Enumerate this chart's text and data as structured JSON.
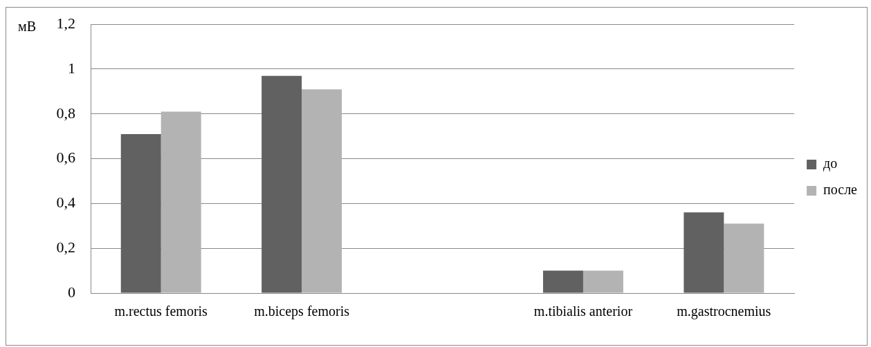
{
  "chart_data": {
    "type": "bar",
    "ylabel": "мВ",
    "categories": [
      "m.rectus femoris",
      "m.biceps femoris",
      null,
      "m.tibialis anterior",
      "m.gastrocnemius"
    ],
    "series": [
      {
        "name": "до",
        "color": "#616161",
        "values": [
          0.71,
          0.97,
          null,
          0.1,
          0.36
        ]
      },
      {
        "name": "после",
        "color": "#b3b3b3",
        "values": [
          0.81,
          0.91,
          null,
          0.1,
          0.31
        ]
      }
    ],
    "ylim": [
      0,
      1.2
    ],
    "yticks": [
      {
        "value": 0,
        "label": "0"
      },
      {
        "value": 0.2,
        "label": "0,2"
      },
      {
        "value": 0.4,
        "label": "0,4"
      },
      {
        "value": 0.6,
        "label": "0,6"
      },
      {
        "value": 0.8,
        "label": "0,8"
      },
      {
        "value": 1,
        "label": "1"
      },
      {
        "value": 1.2,
        "label": "1,2"
      }
    ],
    "grid": "y",
    "legend": "right"
  }
}
